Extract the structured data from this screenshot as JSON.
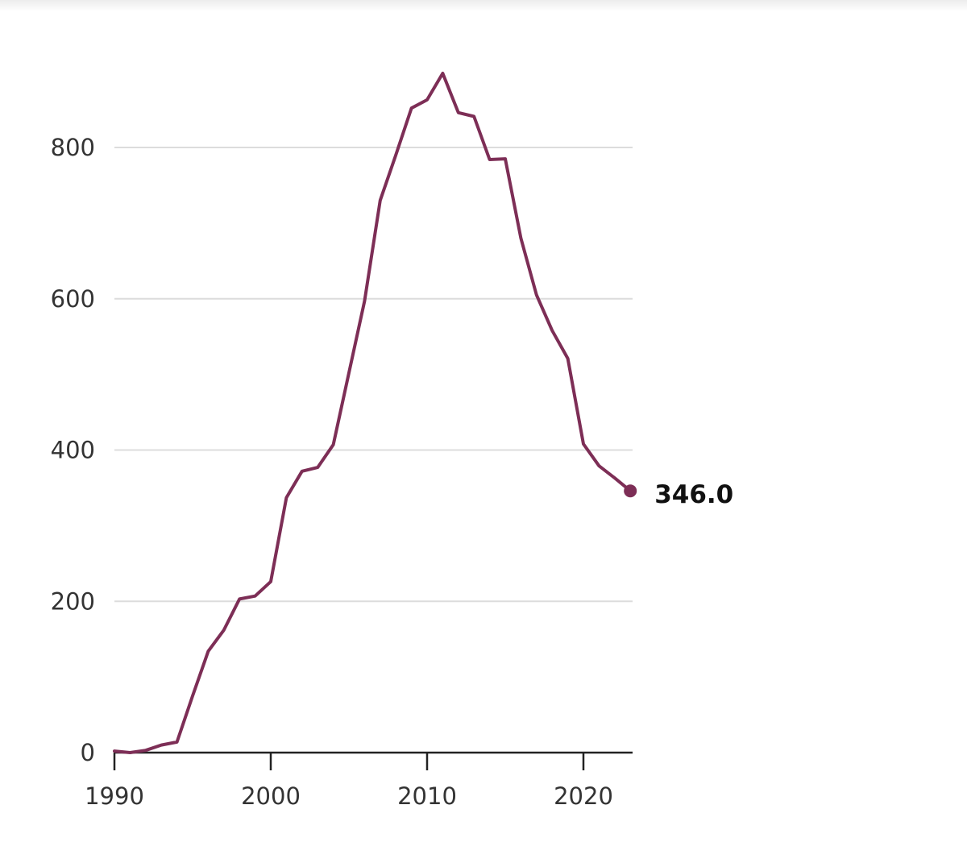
{
  "chart_data": {
    "type": "line",
    "title": "",
    "xlabel": "",
    "ylabel": "",
    "xlim": [
      1990,
      2023
    ],
    "ylim": [
      0,
      900
    ],
    "grid": true,
    "x_ticks": [
      1990,
      2000,
      2010,
      2020
    ],
    "y_ticks": [
      0,
      200,
      400,
      600,
      800
    ],
    "series": [
      {
        "color": "#7d2e56",
        "x": [
          1990,
          1991,
          1992,
          1993,
          1994,
          1995,
          1996,
          1997,
          1998,
          1999,
          2000,
          2001,
          2002,
          2003,
          2004,
          2005,
          2006,
          2007,
          2008,
          2009,
          2010,
          2011,
          2012,
          2013,
          2014,
          2015,
          2016,
          2017,
          2018,
          2019,
          2020,
          2021,
          2022,
          2023
        ],
        "values": [
          2,
          0,
          3,
          10,
          14,
          75,
          134,
          162,
          203,
          207,
          226,
          337,
          372,
          377,
          407,
          502,
          597,
          730,
          790,
          852,
          863,
          898,
          846,
          841,
          784,
          785,
          680,
          605,
          558,
          521,
          408,
          379,
          363,
          346
        ]
      }
    ],
    "end_label": {
      "text": "346.0",
      "x": 2023,
      "value": 346
    }
  }
}
